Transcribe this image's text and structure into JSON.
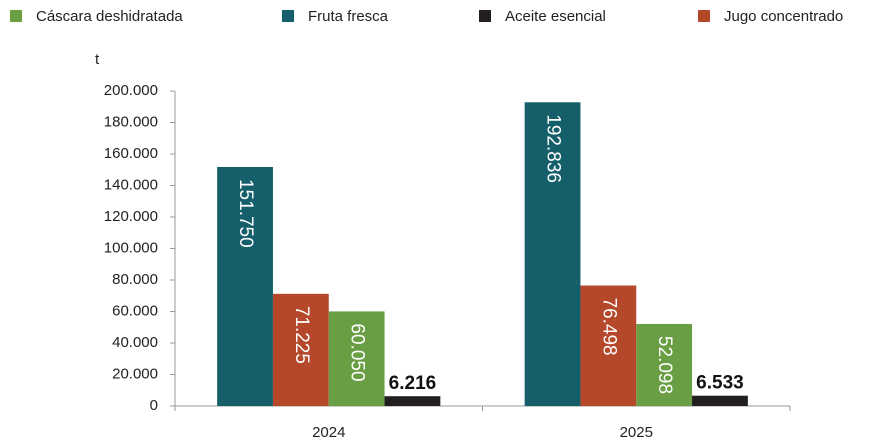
{
  "chart_data": {
    "type": "bar",
    "y_label": "t",
    "categories": [
      "2024",
      "2025"
    ],
    "series": [
      {
        "name": "Fruta fresca",
        "color": "#155f6b",
        "values": [
          151750,
          192836
        ],
        "value_labels": [
          "151.750",
          "192.836"
        ]
      },
      {
        "name": "Jugo concentrado",
        "color": "#b5472b",
        "values": [
          71225,
          76498
        ],
        "value_labels": [
          "71.225",
          "76.498"
        ]
      },
      {
        "name": "Cáscara deshidratada",
        "color": "#6a9e45",
        "values": [
          60050,
          52098
        ],
        "value_labels": [
          "60.050",
          "52.098"
        ]
      },
      {
        "name": "Aceite esencial",
        "color": "#231f20",
        "values": [
          6216,
          6533
        ],
        "value_labels": [
          "6.216",
          "6.533"
        ]
      }
    ],
    "ylim": [
      0,
      200000
    ],
    "yticks": [
      0,
      {
        "value": 20000,
        "label": "20.000"
      },
      {
        "value": 40000,
        "label": "40.000"
      },
      {
        "value": 60000,
        "label": "60.000"
      },
      {
        "value": 80000,
        "label": "80.000"
      },
      {
        "value": 100000,
        "label": "100.000"
      },
      {
        "value": 120000,
        "label": "120.000"
      },
      {
        "value": 140000,
        "label": "140.000"
      },
      {
        "value": 160000,
        "label": "160.000"
      },
      {
        "value": 180000,
        "label": "180.000"
      },
      {
        "value": 200000,
        "label": "200.000"
      }
    ],
    "legend": "top"
  }
}
